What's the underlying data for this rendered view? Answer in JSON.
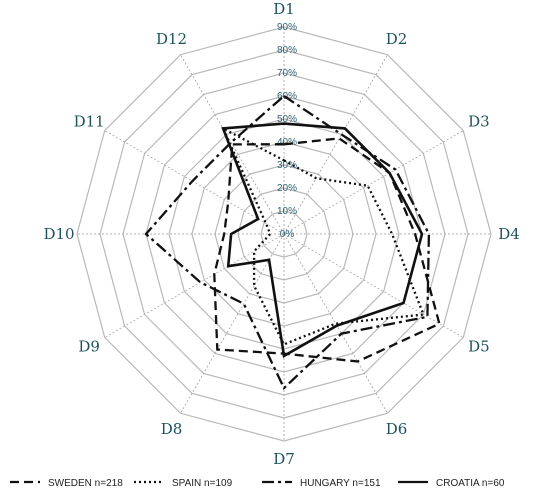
{
  "chart_data": {
    "type": "radar",
    "axes": [
      "D1",
      "D2",
      "D3",
      "D4",
      "D5",
      "D6",
      "D7",
      "D8",
      "D9",
      "D10",
      "D11",
      "D12"
    ],
    "ticks": [
      "0%",
      "10%",
      "20%",
      "30%",
      "40%",
      "50%",
      "60%",
      "70%",
      "80%",
      "90%"
    ],
    "rmax": 90,
    "grid": true,
    "legend_position": "bottom",
    "series": [
      {
        "name": "SWEDEN n=218",
        "dash": "dashed",
        "values": [
          39,
          48,
          53,
          57,
          78,
          64,
          52,
          58,
          35,
          26,
          28,
          45
        ]
      },
      {
        "name": "SPAIN n=109",
        "dash": "dotted",
        "values": [
          32,
          28,
          42,
          47,
          70,
          45,
          48,
          26,
          15,
          6,
          9,
          53
        ]
      },
      {
        "name": "HUNGARY n=151",
        "dash": "dashdot",
        "values": [
          60,
          50,
          56,
          63,
          72,
          50,
          67,
          35,
          42,
          60,
          46,
          46
        ]
      },
      {
        "name": "CROATIA n=60",
        "dash": "solid",
        "values": [
          48,
          53,
          53,
          60,
          60,
          46,
          53,
          13,
          28,
          23,
          13,
          53
        ]
      }
    ]
  }
}
